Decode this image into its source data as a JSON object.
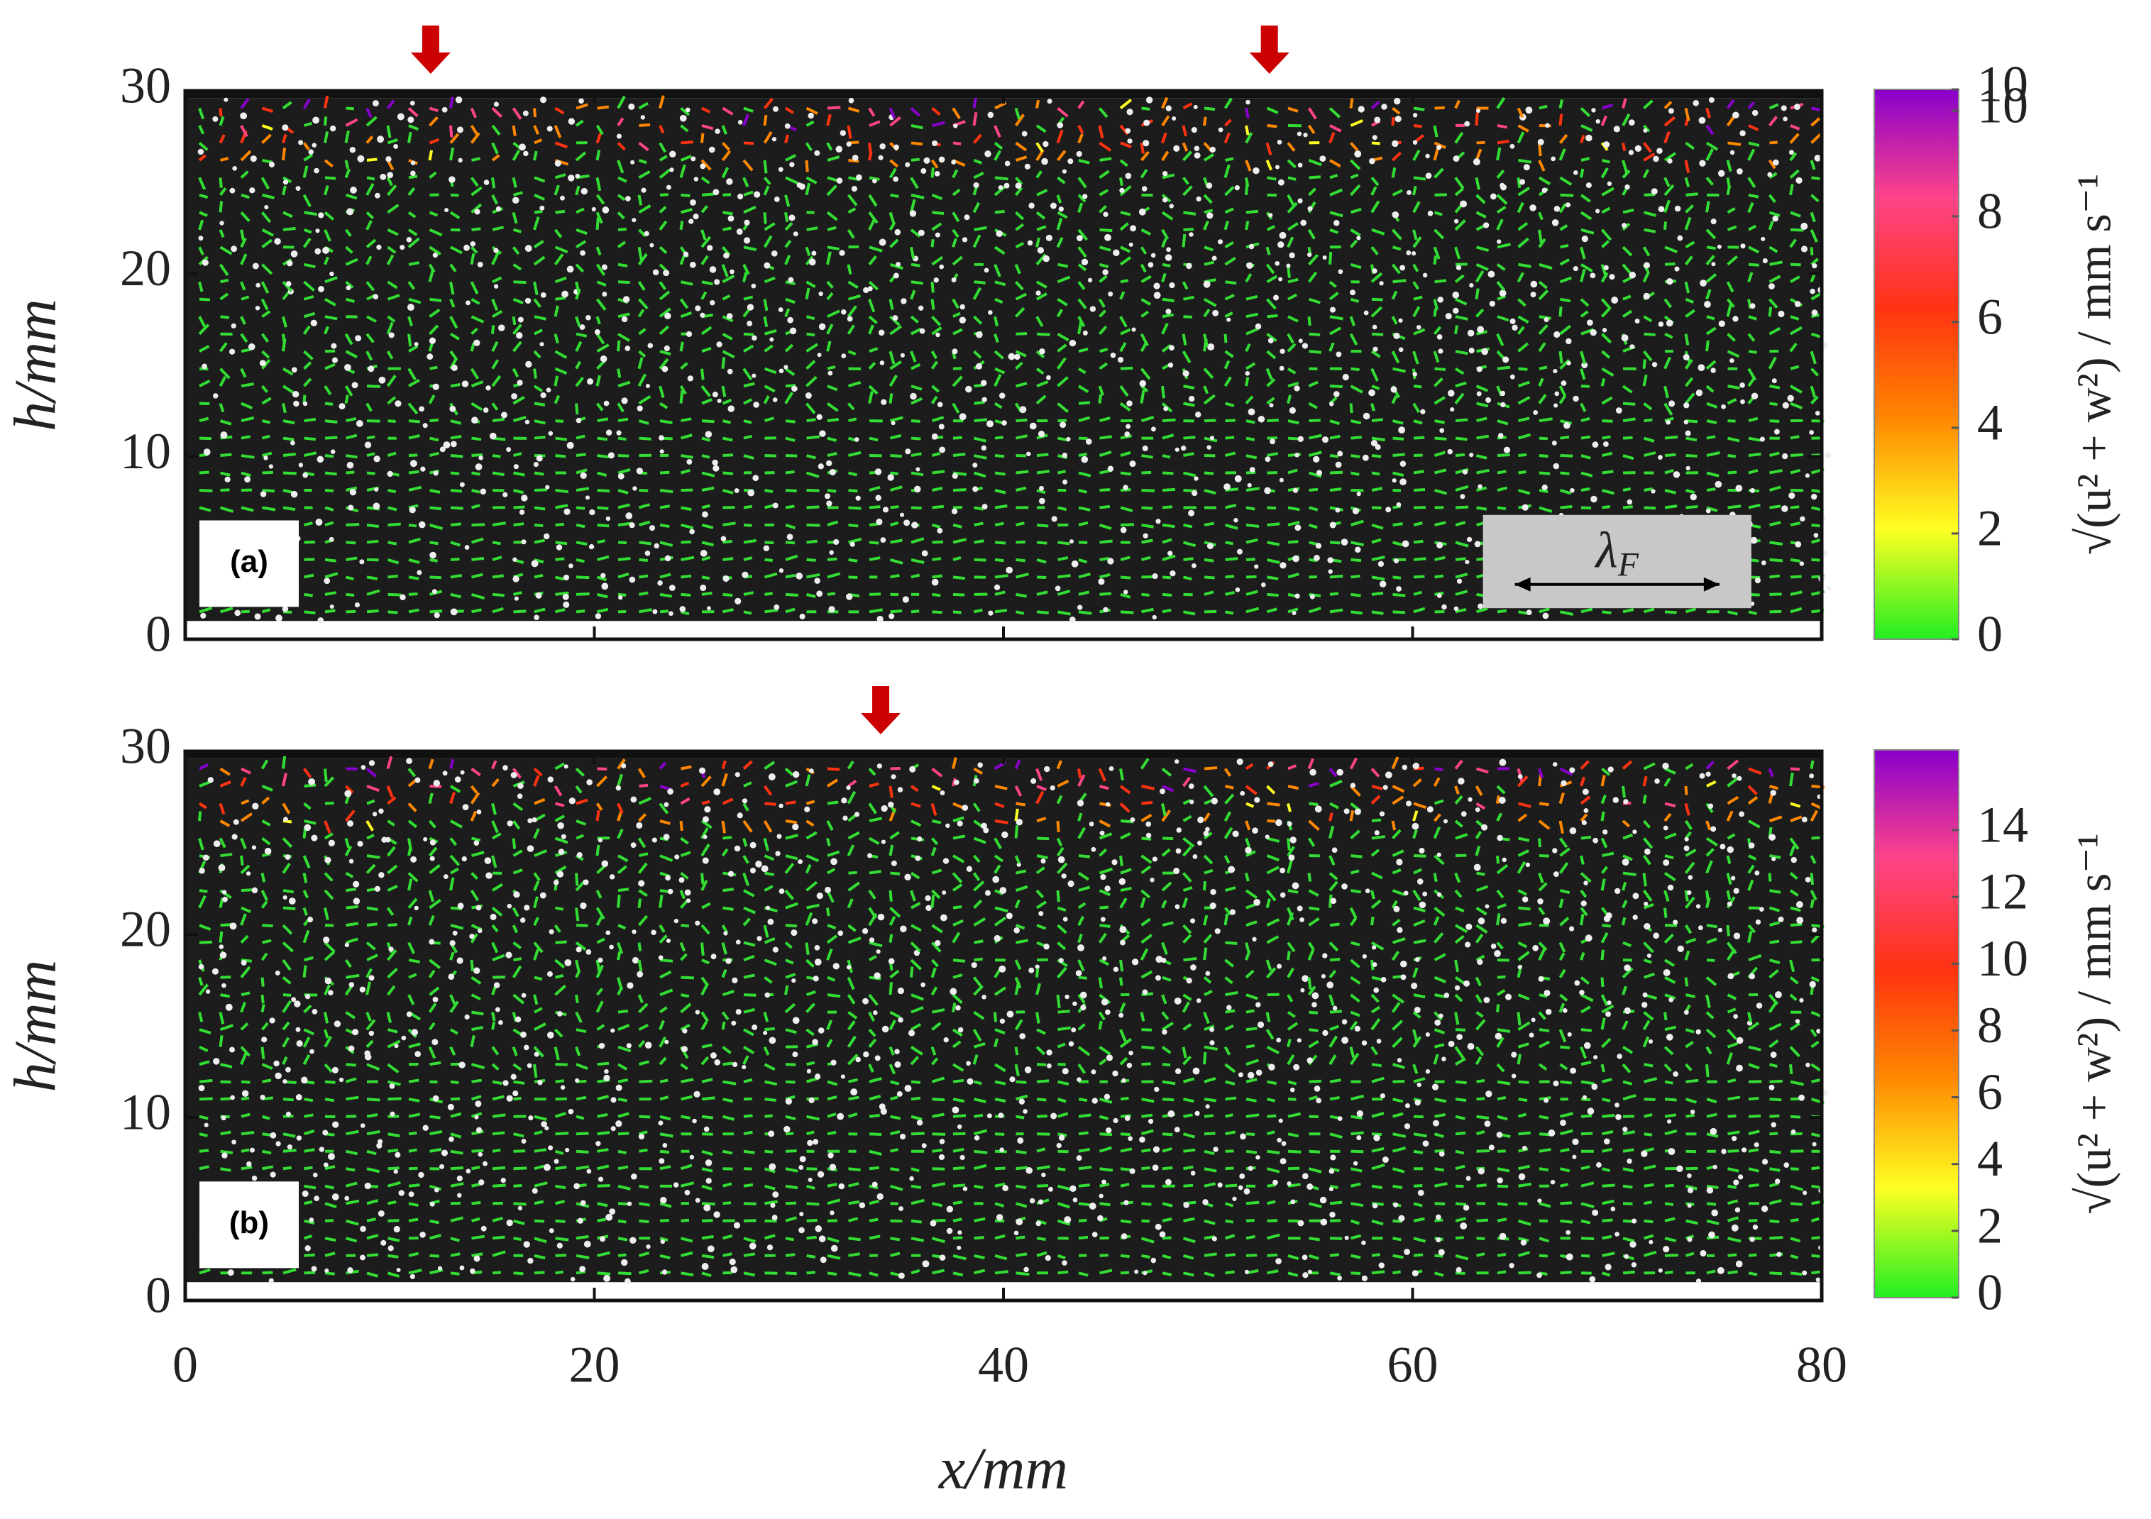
{
  "chart_data": [
    {
      "type": "quiver",
      "panel_label": "(a)",
      "ylabel": "h/mm",
      "xlim": [
        0,
        80
      ],
      "xticks": [
        0,
        20,
        40,
        60,
        80
      ],
      "show_xtick_labels": false,
      "ylim": [
        0,
        30
      ],
      "yticks": [
        0,
        10,
        20,
        30
      ],
      "arrows_x": [
        12,
        53
      ],
      "scale_bar": {
        "symbol": "λ",
        "subscript": "F",
        "x": [
          65,
          75
        ]
      },
      "colorbar": {
        "label": "√(u² + w²) / mm s⁻¹",
        "clim": [
          0,
          10.4
        ],
        "cticks": [
          0,
          2,
          4,
          6,
          8,
          10,
          {
            "value": 10.4,
            "label": "10"
          }
        ]
      },
      "colormap": [
        "#22ee22",
        "#ffff22",
        "#ff8800",
        "#ff3311",
        "#ff4488",
        "#8800cc"
      ]
    },
    {
      "type": "quiver",
      "panel_label": "(b)",
      "ylabel": "h/mm",
      "xlabel": "x/mm",
      "xlim": [
        0,
        80
      ],
      "xticks": [
        0,
        20,
        40,
        60,
        80
      ],
      "show_xtick_labels": true,
      "ylim": [
        0,
        30
      ],
      "yticks": [
        0,
        10,
        20,
        30
      ],
      "arrows_x": [
        34
      ],
      "colorbar": {
        "label": "√(u² + w²) / mm s⁻¹",
        "clim": [
          0,
          16.4
        ],
        "cticks": [
          0,
          2,
          4,
          6,
          8,
          10,
          12,
          14
        ]
      },
      "colormap": [
        "#22ee22",
        "#ffff22",
        "#ff8800",
        "#ff3311",
        "#ff4488",
        "#8800cc"
      ]
    }
  ]
}
